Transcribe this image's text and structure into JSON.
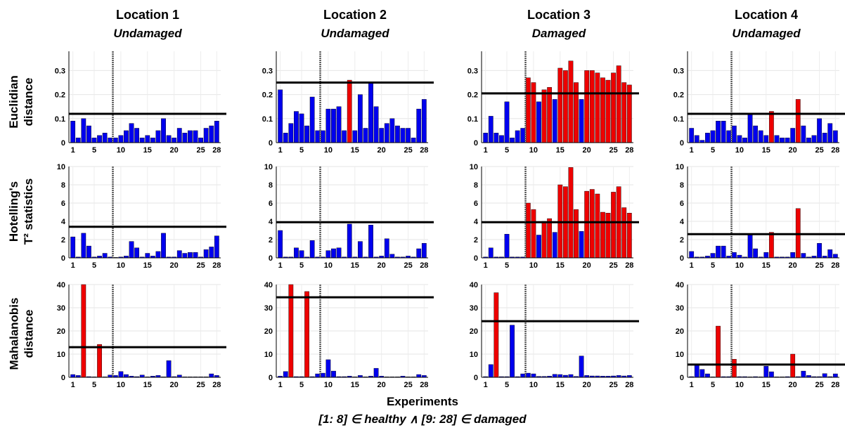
{
  "column_headers": [
    {
      "title": "Location 1",
      "status": "Undamaged"
    },
    {
      "title": "Location 2",
      "status": "Undamaged"
    },
    {
      "title": "Location 3",
      "status": "Damaged"
    },
    {
      "title": "Location 4",
      "status": "Undamaged"
    }
  ],
  "row_labels": [
    {
      "line1": "Euclidian",
      "line2": "distance"
    },
    {
      "line1": "Hotelling's",
      "line2": "T² statistics"
    },
    {
      "line1": "Mahalanobis",
      "line2": "distance"
    }
  ],
  "xlabel": "Experiments",
  "footnote": "[1: 8] ∈ healthy  ∧  [9: 28] ∈ damaged",
  "x_tick_labels": [
    "1",
    "5",
    "10",
    "15",
    "20",
    "25",
    "28"
  ],
  "colors": {
    "below_threshold": "#0000ee",
    "above_threshold": "#ee0000",
    "threshold_line": "#000000",
    "divider": "#555555"
  },
  "chart_data": [
    {
      "type": "bar",
      "location": "Location 1",
      "metric": "Euclidian distance",
      "ylim": [
        0,
        0.38
      ],
      "yticks": [
        0,
        0.1,
        0.2,
        0.3
      ],
      "threshold": 0.12,
      "x": [
        1,
        2,
        3,
        4,
        5,
        6,
        7,
        8,
        9,
        10,
        11,
        12,
        13,
        14,
        15,
        16,
        17,
        18,
        19,
        20,
        21,
        22,
        23,
        24,
        25,
        26,
        27,
        28
      ],
      "values": [
        0.09,
        0.02,
        0.1,
        0.07,
        0.02,
        0.03,
        0.04,
        0.02,
        0.02,
        0.03,
        0.05,
        0.08,
        0.06,
        0.02,
        0.03,
        0.02,
        0.05,
        0.1,
        0.03,
        0.02,
        0.06,
        0.04,
        0.05,
        0.05,
        0.02,
        0.06,
        0.07,
        0.09
      ]
    },
    {
      "type": "bar",
      "location": "Location 2",
      "metric": "Euclidian distance",
      "ylim": [
        0,
        0.38
      ],
      "yticks": [
        0,
        0.1,
        0.2,
        0.3
      ],
      "threshold": 0.25,
      "x": [
        1,
        2,
        3,
        4,
        5,
        6,
        7,
        8,
        9,
        10,
        11,
        12,
        13,
        14,
        15,
        16,
        17,
        18,
        19,
        20,
        21,
        22,
        23,
        24,
        25,
        26,
        27,
        28
      ],
      "values": [
        0.22,
        0.04,
        0.08,
        0.13,
        0.12,
        0.07,
        0.19,
        0.05,
        0.05,
        0.14,
        0.14,
        0.15,
        0.05,
        0.26,
        0.05,
        0.2,
        0.06,
        0.25,
        0.15,
        0.06,
        0.08,
        0.1,
        0.07,
        0.06,
        0.06,
        0.02,
        0.14,
        0.18
      ]
    },
    {
      "type": "bar",
      "location": "Location 3",
      "metric": "Euclidian distance",
      "ylim": [
        0,
        0.38
      ],
      "yticks": [
        0,
        0.1,
        0.2,
        0.3
      ],
      "threshold": 0.205,
      "x": [
        1,
        2,
        3,
        4,
        5,
        6,
        7,
        8,
        9,
        10,
        11,
        12,
        13,
        14,
        15,
        16,
        17,
        18,
        19,
        20,
        21,
        22,
        23,
        24,
        25,
        26,
        27,
        28
      ],
      "values": [
        0.04,
        0.11,
        0.04,
        0.03,
        0.17,
        0.02,
        0.05,
        0.06,
        0.27,
        0.25,
        0.17,
        0.22,
        0.23,
        0.18,
        0.31,
        0.3,
        0.34,
        0.25,
        0.18,
        0.3,
        0.3,
        0.29,
        0.27,
        0.26,
        0.29,
        0.32,
        0.25,
        0.24
      ]
    },
    {
      "type": "bar",
      "location": "Location 4",
      "metric": "Euclidian distance",
      "ylim": [
        0,
        0.38
      ],
      "yticks": [
        0,
        0.1,
        0.2,
        0.3
      ],
      "threshold": 0.12,
      "x": [
        1,
        2,
        3,
        4,
        5,
        6,
        7,
        8,
        9,
        10,
        11,
        12,
        13,
        14,
        15,
        16,
        17,
        18,
        19,
        20,
        21,
        22,
        23,
        24,
        25,
        26,
        27,
        28
      ],
      "values": [
        0.06,
        0.03,
        0.01,
        0.04,
        0.05,
        0.09,
        0.09,
        0.05,
        0.07,
        0.03,
        0.02,
        0.12,
        0.07,
        0.05,
        0.03,
        0.13,
        0.03,
        0.02,
        0.02,
        0.06,
        0.18,
        0.07,
        0.02,
        0.03,
        0.1,
        0.04,
        0.08,
        0.05
      ]
    },
    {
      "type": "bar",
      "location": "Location 1",
      "metric": "Hotelling's T² statistics",
      "ylim": [
        0,
        10
      ],
      "yticks": [
        0,
        2,
        4,
        6,
        8,
        10
      ],
      "threshold": 3.4,
      "x": [
        1,
        2,
        3,
        4,
        5,
        6,
        7,
        8,
        9,
        10,
        11,
        12,
        13,
        14,
        15,
        16,
        17,
        18,
        19,
        20,
        21,
        22,
        23,
        24,
        25,
        26,
        27,
        28
      ],
      "values": [
        2.3,
        0.1,
        2.7,
        1.3,
        0.1,
        0.2,
        0.5,
        0.1,
        0.05,
        0.1,
        0.2,
        1.8,
        1.1,
        0.1,
        0.5,
        0.2,
        0.7,
        2.7,
        0.1,
        0.1,
        0.8,
        0.5,
        0.6,
        0.6,
        0.1,
        0.9,
        1.2,
        2.4
      ]
    },
    {
      "type": "bar",
      "location": "Location 2",
      "metric": "Hotelling's T² statistics",
      "ylim": [
        0,
        10
      ],
      "yticks": [
        0,
        2,
        4,
        6,
        8,
        10
      ],
      "threshold": 3.9,
      "x": [
        1,
        2,
        3,
        4,
        5,
        6,
        7,
        8,
        9,
        10,
        11,
        12,
        13,
        14,
        15,
        16,
        17,
        18,
        19,
        20,
        21,
        22,
        23,
        24,
        25,
        26,
        27,
        28
      ],
      "values": [
        3.0,
        0.1,
        0.1,
        1.1,
        0.8,
        0.1,
        1.9,
        0.1,
        0.1,
        0.8,
        1.0,
        1.1,
        0.1,
        3.7,
        0.1,
        1.8,
        0.1,
        3.6,
        0.1,
        0.2,
        2.1,
        0.4,
        0.1,
        0.1,
        0.2,
        0.1,
        1.0,
        1.6
      ]
    },
    {
      "type": "bar",
      "location": "Location 3",
      "metric": "Hotelling's T² statistics",
      "ylim": [
        0,
        10
      ],
      "yticks": [
        0,
        2,
        4,
        6,
        8,
        10
      ],
      "threshold": 3.9,
      "x": [
        1,
        2,
        3,
        4,
        5,
        6,
        7,
        8,
        9,
        10,
        11,
        12,
        13,
        14,
        15,
        16,
        17,
        18,
        19,
        20,
        21,
        22,
        23,
        24,
        25,
        26,
        27,
        28
      ],
      "values": [
        0.1,
        1.1,
        0.1,
        0.1,
        2.6,
        0.1,
        0.1,
        0.1,
        6.0,
        5.3,
        2.5,
        4.0,
        4.3,
        2.8,
        8.0,
        7.8,
        9.9,
        5.3,
        2.9,
        7.3,
        7.5,
        7.0,
        5.0,
        4.9,
        7.2,
        7.8,
        5.5,
        4.9
      ]
    },
    {
      "type": "bar",
      "location": "Location 4",
      "metric": "Hotelling's T² statistics",
      "ylim": [
        0,
        10
      ],
      "yticks": [
        0,
        2,
        4,
        6,
        8,
        10
      ],
      "threshold": 2.6,
      "x": [
        1,
        2,
        3,
        4,
        5,
        6,
        7,
        8,
        9,
        10,
        11,
        12,
        13,
        14,
        15,
        16,
        17,
        18,
        19,
        20,
        21,
        22,
        23,
        24,
        25,
        26,
        27,
        28
      ],
      "values": [
        0.7,
        0.1,
        0.1,
        0.2,
        0.5,
        1.3,
        1.3,
        0.2,
        0.6,
        0.3,
        0.1,
        2.5,
        1.0,
        0.1,
        0.6,
        2.8,
        0.1,
        0.1,
        0.1,
        0.6,
        5.4,
        0.5,
        0.1,
        0.2,
        1.6,
        0.2,
        0.9,
        0.4
      ]
    },
    {
      "type": "bar",
      "location": "Location 1",
      "metric": "Mahalanobis distance",
      "ylim": [
        0,
        40
      ],
      "yticks": [
        0,
        10,
        20,
        30,
        40
      ],
      "threshold": 13,
      "x": [
        1,
        2,
        3,
        4,
        5,
        6,
        7,
        8,
        9,
        10,
        11,
        12,
        13,
        14,
        15,
        16,
        17,
        18,
        19,
        20,
        21,
        22,
        23,
        24,
        25,
        26,
        27,
        28
      ],
      "values": [
        1.2,
        0.8,
        40,
        0.3,
        0.2,
        14.2,
        0.2,
        1.0,
        0.8,
        2.5,
        1.2,
        0.5,
        0.3,
        1.0,
        0.2,
        0.5,
        0.8,
        0.2,
        7.2,
        0.3,
        1.0,
        0.2,
        0.2,
        0.2,
        0.2,
        0.2,
        1.5,
        0.8
      ]
    },
    {
      "type": "bar",
      "location": "Location 2",
      "metric": "Mahalanobis distance",
      "ylim": [
        0,
        40
      ],
      "yticks": [
        0,
        10,
        20,
        30,
        40
      ],
      "threshold": 34.5,
      "x": [
        1,
        2,
        3,
        4,
        5,
        6,
        7,
        8,
        9,
        10,
        11,
        12,
        13,
        14,
        15,
        16,
        17,
        18,
        19,
        20,
        21,
        22,
        23,
        24,
        25,
        26,
        27,
        28
      ],
      "values": [
        0.5,
        2.5,
        40,
        0.3,
        0.3,
        37,
        0.3,
        1.5,
        1.8,
        7.6,
        2.7,
        0.3,
        0.3,
        0.5,
        0.2,
        0.8,
        0.2,
        0.5,
        3.9,
        0.5,
        0.2,
        0.2,
        0.2,
        0.5,
        0.2,
        0.2,
        1.2,
        0.8
      ]
    },
    {
      "type": "bar",
      "location": "Location 3",
      "metric": "Mahalanobis distance",
      "ylim": [
        0,
        40
      ],
      "yticks": [
        0,
        10,
        20,
        30,
        40
      ],
      "threshold": 24.2,
      "x": [
        1,
        2,
        3,
        4,
        5,
        6,
        7,
        8,
        9,
        10,
        11,
        12,
        13,
        14,
        15,
        16,
        17,
        18,
        19,
        20,
        21,
        22,
        23,
        24,
        25,
        26,
        27,
        28
      ],
      "values": [
        0.3,
        5.5,
        36.5,
        0.3,
        0.3,
        22.5,
        0.3,
        1.5,
        1.8,
        1.5,
        0.4,
        0.4,
        0.5,
        1.3,
        1.2,
        0.9,
        1.2,
        0.4,
        9.2,
        0.8,
        0.6,
        0.6,
        0.5,
        0.5,
        0.6,
        0.8,
        0.6,
        0.8
      ]
    },
    {
      "type": "bar",
      "location": "Location 4",
      "metric": "Mahalanobis distance",
      "ylim": [
        0,
        40
      ],
      "yticks": [
        0,
        10,
        20,
        30,
        40
      ],
      "threshold": 5.5,
      "x": [
        1,
        2,
        3,
        4,
        5,
        6,
        7,
        8,
        9,
        10,
        11,
        12,
        13,
        14,
        15,
        16,
        17,
        18,
        19,
        20,
        21,
        22,
        23,
        24,
        25,
        26,
        27,
        28
      ],
      "values": [
        0.3,
        5.4,
        3.4,
        1.5,
        0.2,
        22.1,
        0.3,
        0.3,
        7.8,
        0.3,
        0.3,
        0.2,
        0.3,
        0.2,
        4.8,
        2.4,
        0.2,
        0.2,
        0.3,
        10,
        0.3,
        2.7,
        0.8,
        0.3,
        0.3,
        1.6,
        0.3,
        1.5
      ]
    }
  ]
}
